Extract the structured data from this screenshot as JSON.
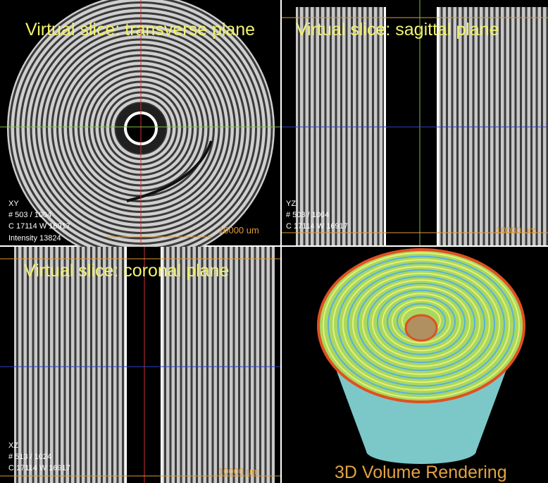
{
  "panels": [
    {
      "title": "Virtual slice: transverse plane",
      "labels": [
        "XY",
        "# 503 / 1004",
        "C 17114 W 16917",
        "Intensity 13824"
      ],
      "scale_bar": "10000 um"
    },
    {
      "title": "Virtual slice: sagittal plane",
      "labels": [
        "YZ",
        "# 503 / 1004",
        "C 17114 W 16917"
      ],
      "scale_bar": "10000 um"
    },
    {
      "title": "Virtual slice: coronal plane",
      "labels": [
        "XZ",
        "# 513 / 1024",
        "C 17114 W 16917"
      ],
      "scale_bar": "10000 um"
    },
    {
      "title": "3D Volume Rendering"
    }
  ]
}
